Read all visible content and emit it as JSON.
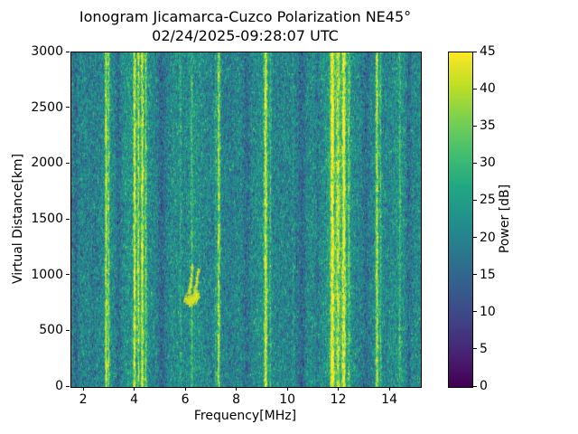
{
  "chart_data": {
    "type": "heatmap",
    "title": "Ionogram Jicamarca-Cuzco Polarization NE45°",
    "subtitle": "02/24/2025-09:28:07 UTC",
    "xlabel": "Frequency[MHz]",
    "ylabel": "Virtual Distance[km]",
    "colorbar_label": "Power [dB]",
    "colormap": "viridis",
    "xlim": [
      1.5,
      15.2
    ],
    "ylim": [
      0,
      3000
    ],
    "clim": [
      0,
      45
    ],
    "xticks": [
      2,
      4,
      6,
      8,
      10,
      12,
      14
    ],
    "yticks": [
      0,
      500,
      1000,
      1500,
      2000,
      2500,
      3000
    ],
    "colorbar_ticks": [
      0,
      5,
      10,
      15,
      20,
      25,
      30,
      35,
      40,
      45
    ],
    "colorbar_position": "right",
    "grid": false,
    "background_noise_db": {
      "mean": 21,
      "sd": 4.5
    },
    "rfi_stripes_mhz": [
      {
        "mhz": 2.86,
        "sigma": 0.03,
        "db": 21
      },
      {
        "mhz": 2.96,
        "sigma": 0.03,
        "db": 14
      },
      {
        "mhz": 3.98,
        "sigma": 0.035,
        "db": 21
      },
      {
        "mhz": 4.13,
        "sigma": 0.03,
        "db": 15
      },
      {
        "mhz": 4.28,
        "sigma": 0.035,
        "db": 21
      },
      {
        "mhz": 4.42,
        "sigma": 0.03,
        "db": 12
      },
      {
        "mhz": 4.2,
        "sigma": 0.22,
        "db": 5
      },
      {
        "mhz": 5.78,
        "sigma": 0.03,
        "db": 5
      },
      {
        "mhz": 6.22,
        "sigma": 0.03,
        "db": 8
      },
      {
        "mhz": 7.15,
        "sigma": 0.03,
        "db": 6
      },
      {
        "mhz": 7.28,
        "sigma": 0.04,
        "db": 18
      },
      {
        "mhz": 9.12,
        "sigma": 0.045,
        "db": 21
      },
      {
        "mhz": 9.3,
        "sigma": 0.03,
        "db": 8
      },
      {
        "mhz": 10.2,
        "sigma": 0.03,
        "db": 4
      },
      {
        "mhz": 11.73,
        "sigma": 0.05,
        "db": 22
      },
      {
        "mhz": 11.95,
        "sigma": 0.05,
        "db": 14
      },
      {
        "mhz": 12.18,
        "sigma": 0.05,
        "db": 22
      },
      {
        "mhz": 12.38,
        "sigma": 0.035,
        "db": 10
      },
      {
        "mhz": 12.0,
        "sigma": 0.3,
        "db": 6
      },
      {
        "mhz": 13.48,
        "sigma": 0.04,
        "db": 19
      },
      {
        "mhz": 13.62,
        "sigma": 0.03,
        "db": 9
      },
      {
        "mhz": 14.38,
        "sigma": 0.03,
        "db": 7
      }
    ],
    "dark_stripes_mhz": [
      {
        "mhz": 1.68,
        "sigma": 0.06,
        "db": -4
      },
      {
        "mhz": 3.35,
        "sigma": 0.08,
        "db": -5
      },
      {
        "mhz": 5.05,
        "sigma": 0.1,
        "db": -4
      },
      {
        "mhz": 8.35,
        "sigma": 0.12,
        "db": -5
      },
      {
        "mhz": 10.55,
        "sigma": 0.1,
        "db": -4
      },
      {
        "mhz": 11.15,
        "sigma": 0.05,
        "db": -3
      },
      {
        "mhz": 13.05,
        "sigma": 0.07,
        "db": -3
      },
      {
        "mhz": 14.72,
        "sigma": 0.07,
        "db": -5
      }
    ],
    "echo_trace": {
      "description": "ionospheric echo cusp",
      "frequency_range_mhz": [
        5.9,
        6.6
      ],
      "virtual_distance_range_km": [
        760,
        1120
      ],
      "segments": [
        {
          "points": [
            [
              5.98,
              795
            ],
            [
              6.12,
              778
            ],
            [
              6.3,
              795
            ],
            [
              6.45,
              835
            ]
          ],
          "thickness": 3,
          "density": 260
        },
        {
          "points": [
            [
              6.08,
              840
            ],
            [
              6.17,
              960
            ],
            [
              6.24,
              1100
            ]
          ],
          "thickness": 1.2,
          "density": 90
        },
        {
          "points": [
            [
              6.32,
              855
            ],
            [
              6.4,
              960
            ],
            [
              6.46,
              1060
            ]
          ],
          "thickness": 1.2,
          "density": 70
        }
      ]
    }
  }
}
